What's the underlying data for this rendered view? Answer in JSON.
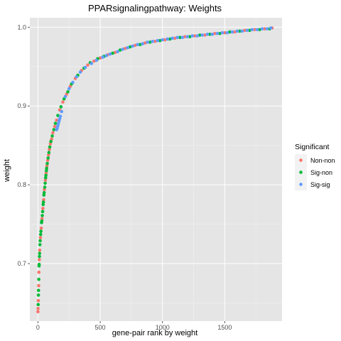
{
  "chart_data": {
    "type": "scatter",
    "title": "PPARsignalingpathway: Weights",
    "xlabel": "gene-pair rank by weight",
    "ylabel": "weight",
    "xlim": [
      -65,
      1960
    ],
    "ylim": [
      0.627,
      1.012
    ],
    "x_ticks": [
      0,
      500,
      1000,
      1500
    ],
    "x_tick_labels": [
      "0",
      "500",
      "1000",
      "1500"
    ],
    "y_ticks": [
      0.7,
      0.8,
      0.9,
      1.0
    ],
    "y_tick_labels": [
      "0.7",
      "0.8",
      "0.9",
      "1.0"
    ],
    "grid": true,
    "background": "#e5e5e5",
    "legend": {
      "title": "Significant",
      "placement": "right",
      "entries": [
        {
          "name": "Non-non",
          "color": "#F8766D"
        },
        {
          "name": "Sig-non",
          "color": "#00BA38"
        },
        {
          "name": "Sig-sig",
          "color": "#619CFF"
        }
      ]
    },
    "series": [
      {
        "name": "Non-non",
        "color": "#F8766D",
        "x": [
          0,
          1,
          3,
          6,
          8,
          11,
          14,
          20,
          27,
          33,
          40,
          46,
          52,
          60,
          66,
          72,
          78,
          85,
          92,
          100,
          110,
          120,
          135,
          150,
          175,
          200,
          230,
          260,
          300,
          350,
          400,
          450,
          500,
          560,
          620,
          700,
          780,
          860,
          940,
          1020,
          1100,
          1180,
          1260,
          1340,
          1420,
          1500,
          1580,
          1660,
          1740,
          1820,
          1880
        ],
        "y": [
          0.639,
          0.643,
          0.653,
          0.672,
          0.689,
          0.705,
          0.717,
          0.733,
          0.745,
          0.757,
          0.77,
          0.781,
          0.794,
          0.806,
          0.815,
          0.824,
          0.831,
          0.838,
          0.845,
          0.852,
          0.858,
          0.866,
          0.874,
          0.882,
          0.895,
          0.905,
          0.915,
          0.925,
          0.935,
          0.945,
          0.952,
          0.957,
          0.961,
          0.965,
          0.968,
          0.973,
          0.977,
          0.98,
          0.982,
          0.984,
          0.986,
          0.988,
          0.989,
          0.99,
          0.992,
          0.993,
          0.994,
          0.996,
          0.997,
          0.998,
          0.999
        ]
      },
      {
        "name": "Sig-non",
        "color": "#00BA38",
        "x": [
          2,
          4,
          5,
          7,
          9,
          10,
          12,
          13,
          16,
          18,
          22,
          24,
          29,
          31,
          35,
          38,
          42,
          44,
          48,
          50,
          55,
          58,
          62,
          64,
          68,
          70,
          75,
          82,
          88,
          95,
          104,
          115,
          128,
          140,
          160,
          185,
          210,
          240,
          270,
          320,
          370,
          420,
          480,
          530,
          600,
          660,
          740,
          820,
          900,
          980,
          1060,
          1140,
          1220,
          1300,
          1380,
          1460,
          1540,
          1620,
          1700,
          1780,
          1860
        ],
        "y": [
          0.648,
          0.66,
          0.666,
          0.68,
          0.697,
          0.699,
          0.709,
          0.713,
          0.724,
          0.729,
          0.737,
          0.741,
          0.752,
          0.754,
          0.761,
          0.766,
          0.775,
          0.778,
          0.787,
          0.79,
          0.797,
          0.802,
          0.809,
          0.812,
          0.818,
          0.821,
          0.827,
          0.834,
          0.841,
          0.848,
          0.855,
          0.862,
          0.87,
          0.878,
          0.888,
          0.899,
          0.909,
          0.918,
          0.928,
          0.939,
          0.948,
          0.955,
          0.96,
          0.963,
          0.967,
          0.971,
          0.975,
          0.978,
          0.981,
          0.983,
          0.985,
          0.987,
          0.988,
          0.99,
          0.991,
          0.992,
          0.994,
          0.995,
          0.996,
          0.997,
          0.998
        ]
      },
      {
        "name": "Sig-sig",
        "color": "#619CFF",
        "x": [
          150,
          155,
          160,
          165,
          170,
          175,
          180,
          190,
          220,
          250,
          280,
          310,
          340,
          380,
          430,
          470,
          520,
          550,
          580,
          640,
          680,
          720,
          760,
          800,
          840,
          880,
          920,
          960,
          1000,
          1040,
          1080,
          1120,
          1160,
          1200,
          1240,
          1280,
          1320,
          1360,
          1400,
          1440,
          1480,
          1520,
          1560,
          1600,
          1640,
          1680,
          1720,
          1760,
          1800,
          1840,
          1870
        ],
        "y": [
          0.87,
          0.872,
          0.875,
          0.878,
          0.881,
          0.884,
          0.887,
          0.893,
          0.912,
          0.922,
          0.93,
          0.937,
          0.943,
          0.949,
          0.954,
          0.958,
          0.962,
          0.964,
          0.966,
          0.969,
          0.972,
          0.974,
          0.976,
          0.978,
          0.979,
          0.981,
          0.982,
          0.983,
          0.984,
          0.985,
          0.986,
          0.987,
          0.987,
          0.988,
          0.989,
          0.989,
          0.99,
          0.991,
          0.991,
          0.992,
          0.993,
          0.993,
          0.994,
          0.995,
          0.995,
          0.996,
          0.997,
          0.997,
          0.998,
          0.998,
          0.999
        ]
      }
    ]
  }
}
